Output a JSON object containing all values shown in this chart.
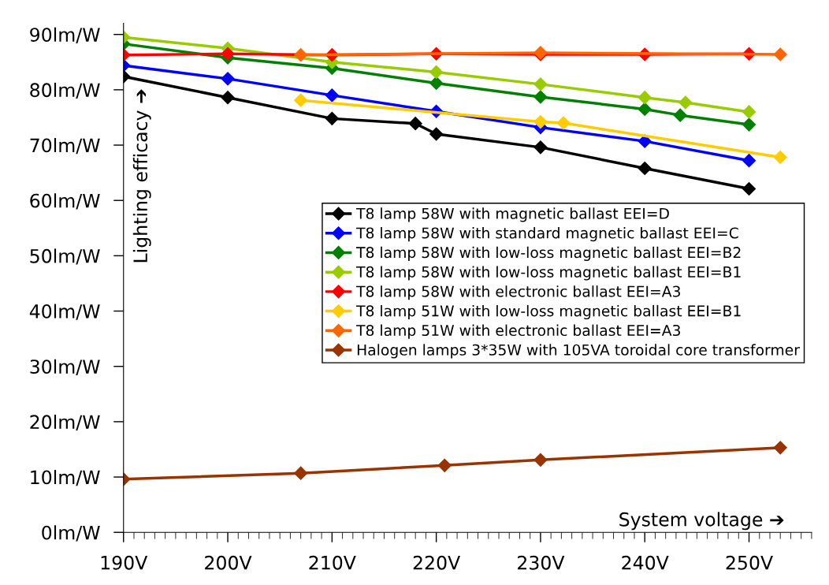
{
  "chart_data": {
    "type": "line",
    "xlabel": "System voltage ➔",
    "ylabel": "Lighting efficacy ➔",
    "xlim": [
      190,
      256
    ],
    "ylim": [
      0,
      92
    ],
    "xticks": [
      {
        "value": 190,
        "label": "190V"
      },
      {
        "value": 200,
        "label": "200V"
      },
      {
        "value": 210,
        "label": "210V"
      },
      {
        "value": 220,
        "label": "220V"
      },
      {
        "value": 230,
        "label": "230V"
      },
      {
        "value": 240,
        "label": "240V"
      },
      {
        "value": 250,
        "label": "250V"
      }
    ],
    "yticks": [
      {
        "value": 0,
        "label": "0lm/W"
      },
      {
        "value": 10,
        "label": "10lm/W"
      },
      {
        "value": 20,
        "label": "20lm/W"
      },
      {
        "value": 30,
        "label": "30lm/W"
      },
      {
        "value": 40,
        "label": "40lm/W"
      },
      {
        "value": 50,
        "label": "50lm/W"
      },
      {
        "value": 60,
        "label": "60lm/W"
      },
      {
        "value": 70,
        "label": "70lm/W"
      },
      {
        "value": 80,
        "label": "80lm/W"
      },
      {
        "value": 90,
        "label": "90lm/W"
      }
    ],
    "grid": false,
    "legend": "center right",
    "marker": "diamond",
    "line_style": "solid",
    "series": [
      {
        "name": "T8 lamp 58W with magnetic ballast EEI=D",
        "color": "#000000",
        "x": [
          190,
          200,
          210,
          218,
          220,
          230,
          240,
          250
        ],
        "values": [
          82.4,
          78.6,
          74.8,
          73.9,
          72.0,
          69.6,
          65.8,
          62.1
        ]
      },
      {
        "name": "T8 lamp 58W with standard magnetic ballast EEI=C",
        "color": "#0000ff",
        "x": [
          190,
          200,
          210,
          220,
          230,
          240,
          250
        ],
        "values": [
          84.4,
          82.0,
          79.0,
          76.1,
          73.2,
          70.7,
          67.2
        ]
      },
      {
        "name": "T8 lamp 58W with low-loss magnetic ballast EEI=B2",
        "color": "#008000",
        "x": [
          190,
          200,
          210,
          220,
          230,
          240,
          243.4,
          250
        ],
        "values": [
          88.3,
          85.8,
          83.9,
          81.2,
          78.7,
          76.5,
          75.4,
          73.7
        ]
      },
      {
        "name": "T8 lamp 58W with low-loss magnetic ballast EEI=B1",
        "color": "#99cc00",
        "x": [
          190,
          200,
          210,
          220,
          230,
          240,
          243.9,
          250
        ],
        "values": [
          89.5,
          87.5,
          85.0,
          83.2,
          81.0,
          78.6,
          77.7,
          76.0
        ]
      },
      {
        "name": "T8 lamp 58W with electronic ballast EEI=A3",
        "color": "#ff0000",
        "x": [
          190,
          200,
          210,
          220,
          230,
          240,
          250
        ],
        "values": [
          86.3,
          86.5,
          86.3,
          86.5,
          86.4,
          86.4,
          86.5
        ]
      },
      {
        "name": "T8 lamp 51W with low-loss magnetic ballast EEI=B1",
        "color": "#ffcc00",
        "x": [
          207,
          230,
          232.2,
          253
        ],
        "values": [
          78.1,
          74.2,
          74.0,
          67.8
        ]
      },
      {
        "name": "T8 lamp 51W with electronic ballast EEI=A3",
        "color": "#ff6600",
        "x": [
          207,
          230,
          253
        ],
        "values": [
          86.3,
          86.7,
          86.4
        ]
      },
      {
        "name": "Halogen lamps 3*35W with 105VA toroidal core transformer",
        "color": "#993300",
        "x": [
          190,
          207,
          220.8,
          230,
          253
        ],
        "values": [
          9.6,
          10.7,
          12.1,
          13.1,
          15.3
        ]
      }
    ]
  }
}
